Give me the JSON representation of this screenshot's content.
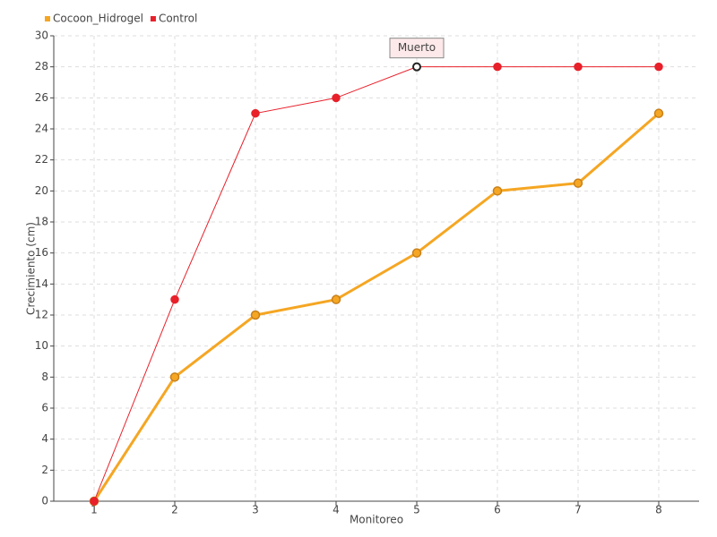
{
  "chart_data": {
    "type": "line",
    "x": [
      1,
      2,
      3,
      4,
      5,
      6,
      7,
      8
    ],
    "x_label": "Monitoreo",
    "y_label": "Crecimiento (cm)",
    "xlim": [
      0.5,
      8.5
    ],
    "xticks": [
      1,
      2,
      3,
      4,
      5,
      6,
      7,
      8
    ],
    "ylim": [
      0,
      30
    ],
    "yticks": [
      0,
      2,
      4,
      6,
      8,
      10,
      12,
      14,
      16,
      18,
      20,
      22,
      24,
      26,
      28,
      30
    ],
    "grid": true,
    "legend": "top-left",
    "series": [
      {
        "name": "Cocoon_Hidrogel",
        "color": "#f5a623",
        "values": [
          0,
          8,
          12,
          13,
          16,
          20,
          20.5,
          25
        ]
      },
      {
        "name": "Control",
        "color": "#e8202a",
        "values": [
          0,
          13,
          25,
          26,
          28,
          28,
          28,
          28
        ]
      }
    ],
    "annotations": [
      {
        "text": "Muerto",
        "x": 5,
        "y": 28
      }
    ]
  }
}
